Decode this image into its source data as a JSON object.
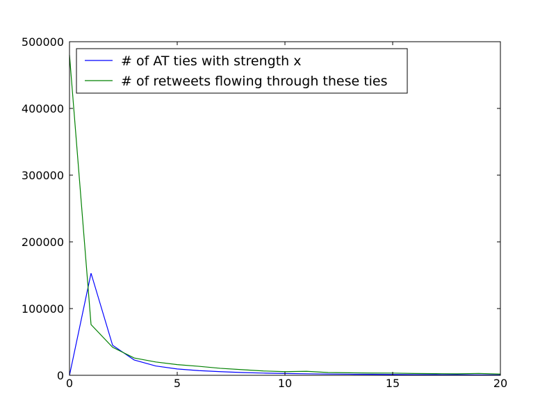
{
  "chart_data": {
    "type": "line",
    "title": "",
    "xlabel": "",
    "ylabel": "",
    "xlim": [
      0,
      20
    ],
    "ylim": [
      0,
      500000
    ],
    "x_ticks": [
      0,
      5,
      10,
      15,
      20
    ],
    "y_ticks": [
      0,
      100000,
      200000,
      300000,
      400000,
      500000
    ],
    "x_tick_labels": [
      "0",
      "5",
      "10",
      "15",
      "20"
    ],
    "y_tick_labels": [
      "0",
      "100000",
      "200000",
      "300000",
      "400000",
      "500000"
    ],
    "grid": false,
    "legend_position": "top-left",
    "x": [
      0,
      1,
      2,
      3,
      4,
      5,
      6,
      7,
      8,
      9,
      10,
      11,
      12,
      13,
      14,
      15,
      16,
      17,
      18,
      19,
      20
    ],
    "series": [
      {
        "name": "# of AT ties with strength x",
        "color": "#0000ff",
        "values": [
          0,
          153000,
          45000,
          23000,
          14000,
          9500,
          7000,
          5500,
          4200,
          3300,
          2700,
          2300,
          1900,
          1600,
          1400,
          1200,
          1000,
          900,
          800,
          700,
          600
        ]
      },
      {
        "name": "# of retweets flowing through these ties",
        "color": "#008000",
        "values": [
          480000,
          76000,
          42000,
          26000,
          20000,
          16000,
          13500,
          10500,
          8500,
          6500,
          5500,
          6000,
          4200,
          3800,
          3400,
          3300,
          2700,
          2500,
          2200,
          2800,
          1800
        ]
      }
    ]
  }
}
